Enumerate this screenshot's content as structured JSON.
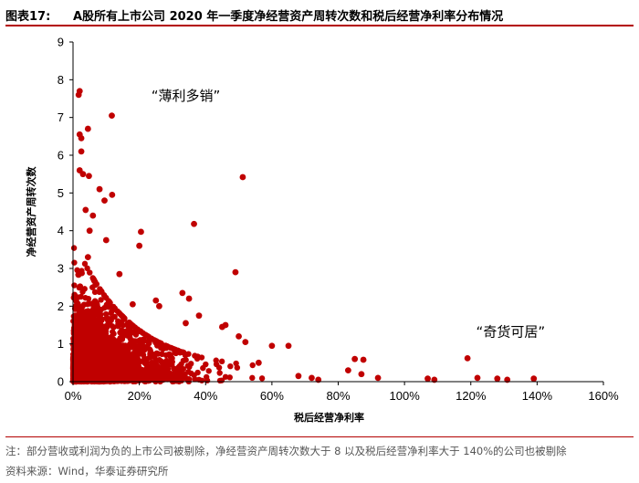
{
  "header": {
    "figure_label": "图表17:",
    "figure_title": "A股所有上市公司 2020 年一季度净经营资产周转次数和税后经营净利率分布情况"
  },
  "footer": {
    "note": "注：部分营收或利润为负的上市公司被剔除，净经营资产周转次数大于 8 以及税后经营净利率大于 140%的公司也被剔除",
    "source": "资料来源：Wind，华泰证券研究所"
  },
  "colors": {
    "marker": "#c00000",
    "rule": "#b30000",
    "axis": "#000000"
  },
  "chart_data": {
    "type": "scatter",
    "xlabel": "税后经营净利率",
    "ylabel": "净经营资产周转次数",
    "xlim": [
      0,
      1.6
    ],
    "ylim": [
      0,
      9
    ],
    "x_ticks": [
      0,
      0.2,
      0.4,
      0.6,
      0.8,
      1.0,
      1.2,
      1.4,
      1.6
    ],
    "x_tick_labels": [
      "0%",
      "20%",
      "40%",
      "60%",
      "80%",
      "100%",
      "120%",
      "140%",
      "160%"
    ],
    "y_ticks": [
      0,
      1,
      2,
      3,
      4,
      5,
      6,
      7,
      8,
      9
    ],
    "y_tick_labels": [
      "0",
      "1",
      "2",
      "3",
      "4",
      "5",
      "6",
      "7",
      "8",
      "9"
    ],
    "grid": false,
    "annotations": [
      {
        "text": "“薄利多销”",
        "x": 0.34,
        "y": 7.45
      },
      {
        "text": "“奇货可居”",
        "x": 1.32,
        "y": 1.2
      }
    ],
    "outlier_points": [
      [
        0.02,
        7.7
      ],
      [
        0.017,
        7.6
      ],
      [
        0.117,
        7.05
      ],
      [
        0.02,
        6.55
      ],
      [
        0.025,
        6.45
      ],
      [
        0.045,
        6.7
      ],
      [
        0.025,
        6.1
      ],
      [
        0.03,
        5.5
      ],
      [
        0.02,
        5.6
      ],
      [
        0.048,
        5.45
      ],
      [
        0.512,
        5.42
      ],
      [
        0.08,
        5.1
      ],
      [
        0.095,
        4.8
      ],
      [
        0.118,
        4.95
      ],
      [
        0.038,
        4.55
      ],
      [
        0.06,
        4.4
      ],
      [
        0.365,
        4.18
      ],
      [
        0.05,
        4.0
      ],
      [
        0.205,
        3.97
      ],
      [
        0.1,
        3.75
      ],
      [
        0.2,
        3.6
      ],
      [
        0.045,
        3.3
      ],
      [
        0.49,
        2.9
      ],
      [
        0.14,
        2.85
      ],
      [
        0.33,
        2.35
      ],
      [
        0.35,
        2.2
      ],
      [
        0.25,
        2.15
      ],
      [
        0.18,
        2.05
      ],
      [
        0.26,
        2.0
      ],
      [
        0.38,
        1.75
      ],
      [
        0.34,
        1.55
      ],
      [
        0.46,
        1.5
      ],
      [
        0.45,
        1.45
      ],
      [
        0.5,
        1.2
      ],
      [
        0.52,
        1.05
      ],
      [
        0.6,
        0.95
      ],
      [
        0.65,
        0.95
      ],
      [
        0.72,
        0.1
      ],
      [
        0.74,
        0.05
      ],
      [
        0.85,
        0.6
      ],
      [
        0.876,
        0.58
      ],
      [
        0.83,
        0.3
      ],
      [
        0.87,
        0.2
      ],
      [
        0.92,
        0.1
      ],
      [
        1.07,
        0.08
      ],
      [
        1.09,
        0.05
      ],
      [
        1.19,
        0.62
      ],
      [
        1.22,
        0.1
      ],
      [
        1.28,
        0.08
      ],
      [
        1.31,
        0.05
      ],
      [
        1.39,
        0.08
      ],
      [
        0.68,
        0.15
      ],
      [
        0.56,
        0.5
      ]
    ],
    "dense_region": {
      "description": "several thousand points concentrated near the origin",
      "approx_point_count": 3000,
      "x_range": [
        0,
        0.6
      ],
      "y_range": [
        0,
        3.5
      ]
    }
  }
}
